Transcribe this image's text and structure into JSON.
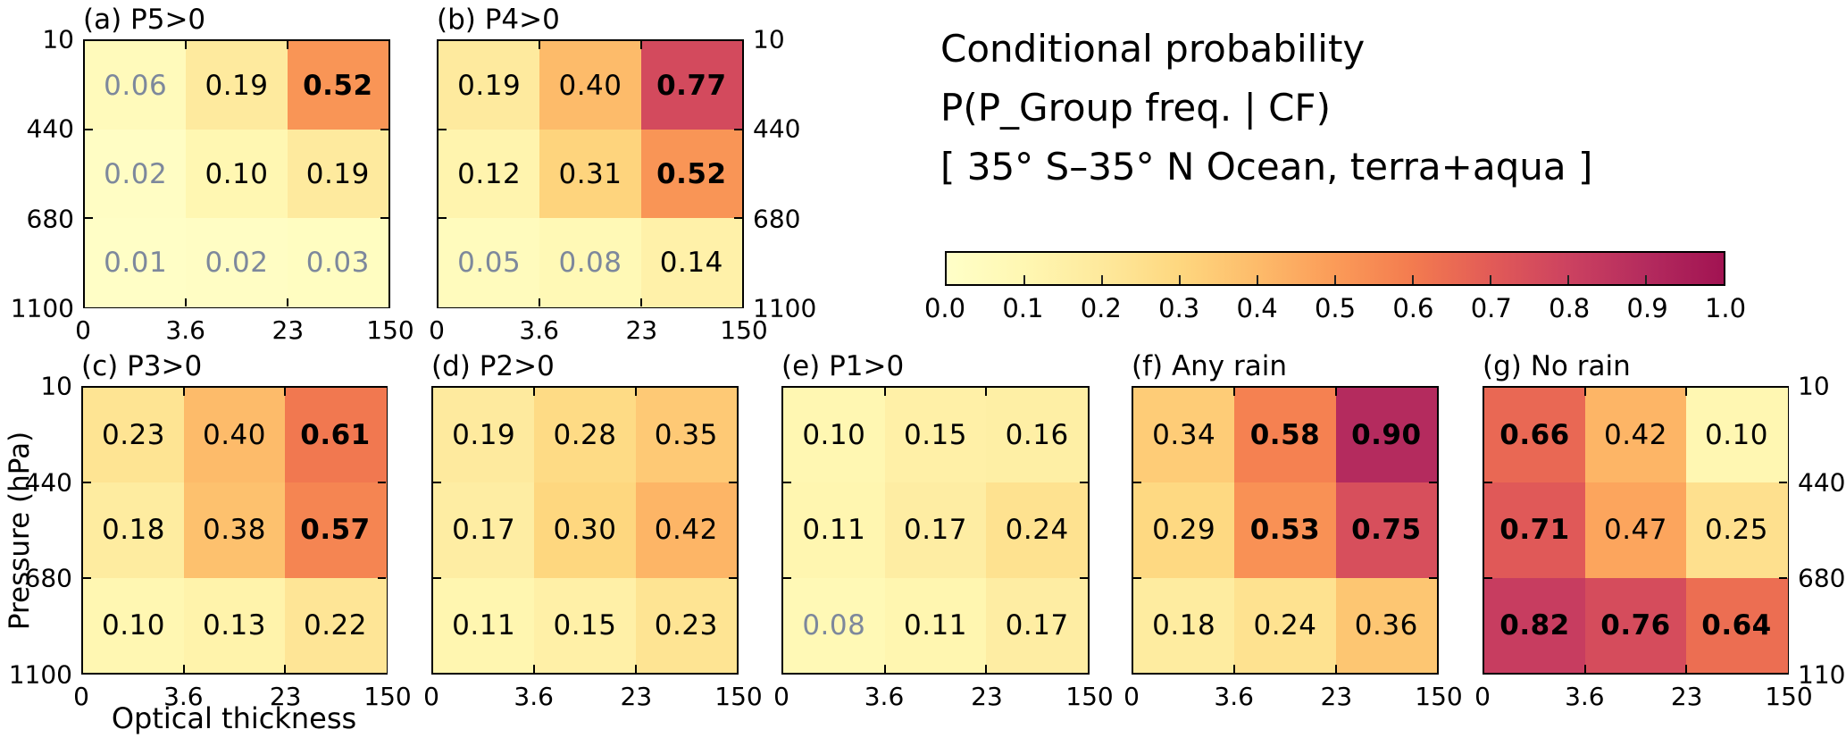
{
  "figure": {
    "title_lines": [
      "Conditional probability",
      "P(P_Group freq. | CF)",
      "[ 35° S–35° N Ocean, terra+aqua ]"
    ],
    "x_axis_label": "Optical thickness",
    "y_axis_label": "Pressure (hPa)"
  },
  "colorbar": {
    "tick_labels": [
      "0.0",
      "0.1",
      "0.2",
      "0.3",
      "0.4",
      "0.5",
      "0.6",
      "0.7",
      "0.8",
      "0.9",
      "1.0"
    ],
    "gradient_stops": [
      {
        "p": 0.0,
        "color": "#ffffc8"
      },
      {
        "p": 0.1,
        "color": "#fff7b2"
      },
      {
        "p": 0.2,
        "color": "#fee99c"
      },
      {
        "p": 0.3,
        "color": "#fed77f"
      },
      {
        "p": 0.4,
        "color": "#fdbb6a"
      },
      {
        "p": 0.5,
        "color": "#fb9b58"
      },
      {
        "p": 0.6,
        "color": "#f37b4f"
      },
      {
        "p": 0.7,
        "color": "#e25b57"
      },
      {
        "p": 0.8,
        "color": "#cc4260"
      },
      {
        "p": 0.9,
        "color": "#b42b5e"
      },
      {
        "p": 1.0,
        "color": "#a11352"
      }
    ]
  },
  "chart_data": {
    "type": "heatmap",
    "x_categories": [
      "0",
      "3.6",
      "23",
      "150"
    ],
    "y_categories": [
      "10",
      "440",
      "680",
      "1100"
    ],
    "x_axis_label": "Optical thickness",
    "y_axis_label": "Pressure (hPa)",
    "value_range": [
      0.0,
      1.0
    ],
    "colorbar_ticks": [
      "0.0",
      "0.1",
      "0.2",
      "0.3",
      "0.4",
      "0.5",
      "0.6",
      "0.7",
      "0.8",
      "0.9",
      "1.0"
    ],
    "panels": [
      {
        "id": "a",
        "title": "(a) P5>0",
        "values": [
          [
            "0.06",
            "0.19",
            "0.52"
          ],
          [
            "0.02",
            "0.10",
            "0.19"
          ],
          [
            "0.01",
            "0.02",
            "0.03"
          ]
        ]
      },
      {
        "id": "b",
        "title": "(b) P4>0",
        "values": [
          [
            "0.19",
            "0.40",
            "0.77"
          ],
          [
            "0.12",
            "0.31",
            "0.52"
          ],
          [
            "0.05",
            "0.08",
            "0.14"
          ]
        ]
      },
      {
        "id": "c",
        "title": "(c) P3>0",
        "values": [
          [
            "0.23",
            "0.40",
            "0.61"
          ],
          [
            "0.18",
            "0.38",
            "0.57"
          ],
          [
            "0.10",
            "0.13",
            "0.22"
          ]
        ]
      },
      {
        "id": "d",
        "title": "(d) P2>0",
        "values": [
          [
            "0.19",
            "0.28",
            "0.35"
          ],
          [
            "0.17",
            "0.30",
            "0.42"
          ],
          [
            "0.11",
            "0.15",
            "0.23"
          ]
        ]
      },
      {
        "id": "e",
        "title": "(e) P1>0",
        "values": [
          [
            "0.10",
            "0.15",
            "0.16"
          ],
          [
            "0.11",
            "0.17",
            "0.24"
          ],
          [
            "0.08",
            "0.11",
            "0.17"
          ]
        ]
      },
      {
        "id": "f",
        "title": "(f) Any rain",
        "values": [
          [
            "0.34",
            "0.58",
            "0.90"
          ],
          [
            "0.29",
            "0.53",
            "0.75"
          ],
          [
            "0.18",
            "0.24",
            "0.36"
          ]
        ]
      },
      {
        "id": "g",
        "title": "(g) No rain",
        "values": [
          [
            "0.66",
            "0.42",
            "0.10"
          ],
          [
            "0.71",
            "0.47",
            "0.25"
          ],
          [
            "0.82",
            "0.76",
            "0.64"
          ]
        ]
      }
    ],
    "styling": {
      "bold_min_value": 0.5,
      "gray_max_value": 0.095,
      "gray_text_color": "#7d889c",
      "text_color": "#000000"
    }
  }
}
